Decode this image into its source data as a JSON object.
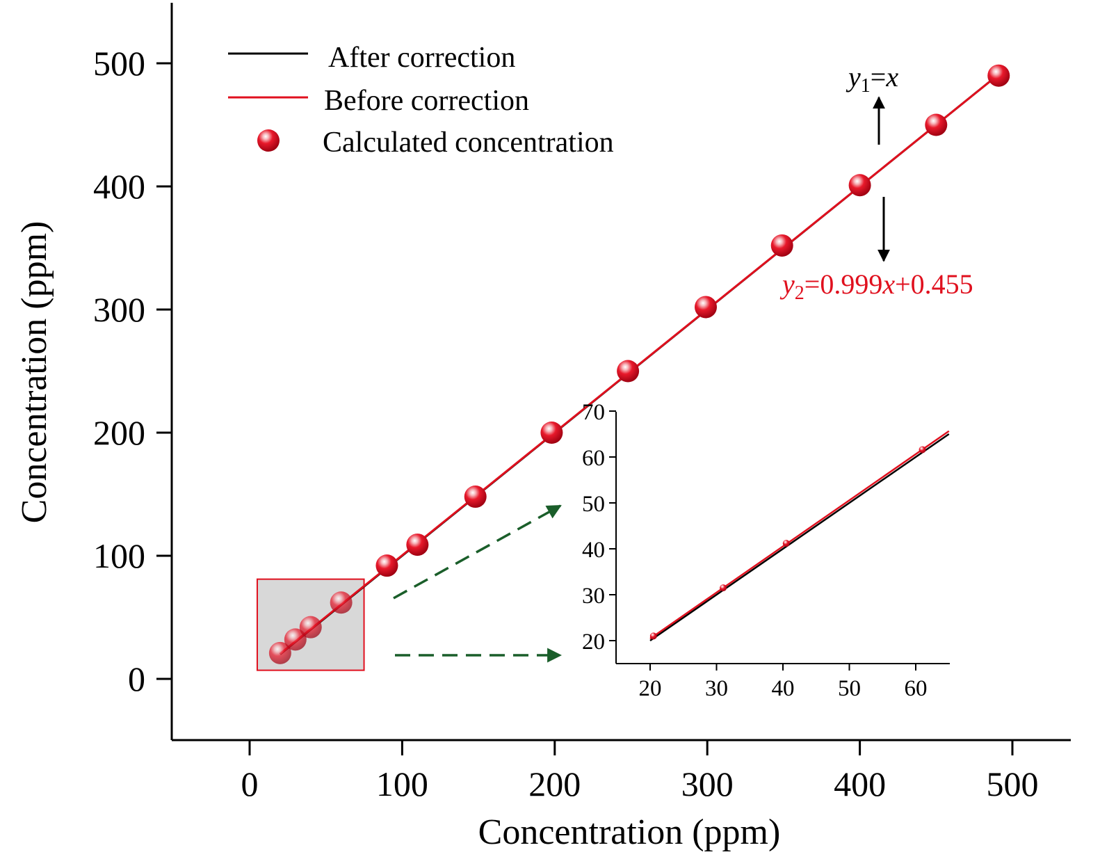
{
  "chart_data": {
    "type": "line",
    "xlabel": "Concentration (ppm)",
    "ylabel": "Concentration (ppm)",
    "xlim": [
      -50,
      540
    ],
    "ylim": [
      -50,
      550
    ],
    "xticks": [
      0,
      100,
      200,
      300,
      400,
      500
    ],
    "yticks": [
      0,
      100,
      200,
      300,
      400,
      500
    ],
    "series": [
      {
        "name": "After correction",
        "kind": "line",
        "color": "#000000",
        "slope": 1,
        "intercept": 0
      },
      {
        "name": "Before correction",
        "kind": "line",
        "color": "#e0101e",
        "slope": 0.999,
        "intercept": 0.455
      },
      {
        "name": "Calculated concentration",
        "kind": "scatter",
        "color": "#e0101e",
        "x": [
          20,
          30,
          40,
          60,
          90,
          110,
          148,
          198,
          248,
          299,
          349,
          400,
          450,
          491
        ],
        "y": [
          21,
          32,
          42,
          62,
          92,
          109,
          148,
          200,
          250,
          302,
          352,
          401,
          450,
          490
        ]
      }
    ],
    "legend": {
      "position": "top-left",
      "entries": [
        "After correction",
        "Before correction",
        "Calculated concentration"
      ]
    },
    "annotations": {
      "eq1": {
        "var": "y",
        "sub": "1",
        "rest": "=",
        "rest2": "x"
      },
      "eq2": {
        "var": "y",
        "sub": "2",
        "rest": "=0.999",
        "rest2": "x",
        "rest3": "+0.455"
      }
    },
    "zoom_box": {
      "x": [
        5,
        75
      ],
      "y": [
        7,
        81
      ],
      "color": "#d8d8d8",
      "edge": "#e0101e"
    },
    "inset": {
      "xlim": [
        15,
        65
      ],
      "ylim": [
        15,
        70
      ],
      "xticks": [
        20,
        30,
        40,
        50,
        60
      ],
      "yticks": [
        20,
        30,
        40,
        50,
        60,
        70
      ],
      "points": {
        "x": [
          20.5,
          31,
          40.5,
          61
        ],
        "y": [
          21,
          31.5,
          41.2,
          61.6
        ]
      }
    },
    "grid": false,
    "arrow_color": "#1a5e2a"
  }
}
